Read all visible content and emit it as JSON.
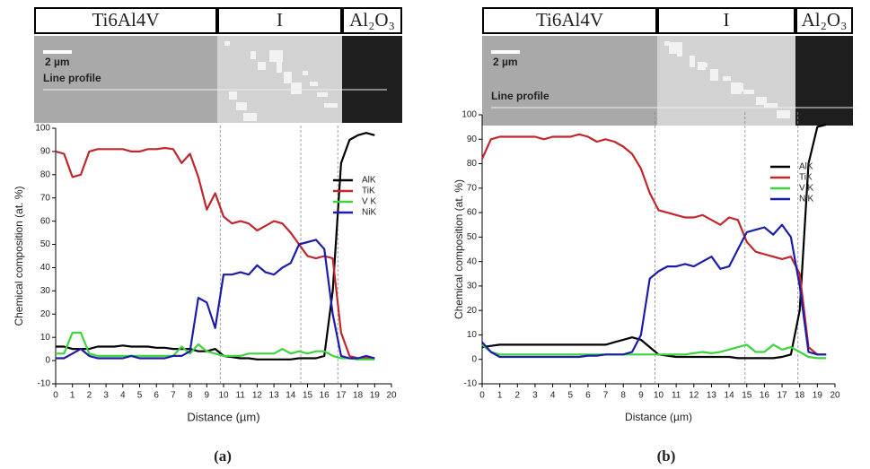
{
  "chart_data": [
    {
      "type": "line",
      "caption": "(a)",
      "panels": [
        "Ti6Al4V",
        "I",
        "Al₂O₃"
      ],
      "annotations": [
        "2 µm",
        "Line profile"
      ],
      "xlabel": "Distance (µm)",
      "ylabel": "Chemical composition (at. %)",
      "x": [
        0,
        0.5,
        1,
        1.5,
        2,
        2.5,
        3,
        3.5,
        4,
        4.5,
        5,
        5.5,
        6,
        6.5,
        7,
        7.5,
        8,
        8.5,
        9,
        9.5,
        10,
        10.5,
        11,
        11.5,
        12,
        12.5,
        13,
        13.5,
        14,
        14.5,
        15,
        15.5,
        16,
        16.5,
        17,
        17.5,
        18,
        18.5,
        19
      ],
      "series": [
        {
          "name": "AlK",
          "color": "#000000",
          "values": [
            6,
            6,
            5,
            5,
            5,
            6,
            6,
            6,
            6.5,
            6,
            6,
            6,
            5.5,
            5.5,
            5,
            5,
            5,
            4,
            4,
            5,
            2,
            1.5,
            1,
            1,
            0.5,
            0.5,
            0.5,
            0.5,
            0.5,
            1,
            1,
            1,
            2,
            30,
            85,
            95,
            97,
            98,
            97
          ]
        },
        {
          "name": "TiK",
          "color": "#c0262b",
          "values": [
            90,
            89,
            79,
            80,
            90,
            91,
            91,
            91,
            91,
            90,
            90,
            91,
            91,
            91.5,
            91,
            85,
            89,
            79,
            65,
            72,
            62,
            59,
            60,
            59,
            56,
            58,
            60,
            59,
            55,
            50,
            45,
            44,
            45,
            44,
            12,
            2,
            1,
            1,
            1
          ]
        },
        {
          "name": "V K",
          "color": "#3dd43d",
          "values": [
            3,
            3,
            12,
            12,
            3,
            2,
            2,
            2,
            2,
            2,
            2,
            2,
            2,
            2,
            2,
            6,
            3,
            7,
            4,
            3,
            2,
            2,
            2,
            3,
            3,
            3,
            3,
            5,
            3,
            4,
            3,
            4,
            4,
            2,
            1,
            1,
            0.5,
            0.5,
            0.5
          ]
        },
        {
          "name": "NiK",
          "color": "#1c1ca8",
          "values": [
            1,
            1,
            3,
            5,
            2,
            1,
            1,
            1,
            1,
            2,
            1,
            1,
            1,
            1,
            2,
            2,
            4,
            27,
            25,
            14,
            37,
            37,
            38,
            37,
            41,
            38,
            37,
            40,
            42,
            50,
            51,
            52,
            48,
            20,
            2,
            1,
            1,
            2,
            1
          ]
        }
      ],
      "vlines": [
        9.8,
        14.6,
        16.8
      ],
      "xlim": [
        0,
        20
      ],
      "xticks": [
        0,
        1,
        2,
        3,
        4,
        5,
        6,
        7,
        8,
        9,
        10,
        11,
        12,
        13,
        14,
        15,
        16,
        17,
        18,
        19,
        20
      ],
      "ylim": [
        -10,
        100
      ],
      "yticks": [
        -10,
        0,
        10,
        20,
        30,
        40,
        50,
        60,
        70,
        80,
        90,
        100
      ],
      "legend": "right"
    },
    {
      "type": "line",
      "caption": "(b)",
      "panels": [
        "Ti6Al4V",
        "I",
        "Al₂O₃"
      ],
      "annotations": [
        "2 µm",
        "Line profile"
      ],
      "xlabel": "Distance (µm)",
      "ylabel": "Chemical composition (at. %)",
      "x": [
        0,
        0.5,
        1,
        1.5,
        2,
        2.5,
        3,
        3.5,
        4,
        4.5,
        5,
        5.5,
        6,
        6.5,
        7,
        7.5,
        8,
        8.5,
        9,
        9.5,
        10,
        10.5,
        11,
        11.5,
        12,
        12.5,
        13,
        13.5,
        14,
        14.5,
        15,
        15.5,
        16,
        16.5,
        17,
        17.5,
        18,
        18.5,
        19,
        19.5
      ],
      "series": [
        {
          "name": "AlK",
          "color": "#000000",
          "values": [
            5,
            5.5,
            6,
            6,
            6,
            6,
            6,
            6,
            6,
            6,
            6,
            6,
            6,
            6,
            6,
            7,
            8,
            9,
            8,
            5,
            2,
            1.5,
            1,
            1,
            1,
            1,
            1,
            1,
            1,
            0.5,
            0.5,
            0.5,
            0.5,
            0.5,
            1,
            2,
            20,
            80,
            95,
            96
          ]
        },
        {
          "name": "TiK",
          "color": "#c0262b",
          "values": [
            82,
            90,
            91,
            91,
            91,
            91,
            91,
            90,
            91,
            91,
            91,
            92,
            91,
            89,
            90,
            89,
            87,
            84,
            78,
            68,
            61,
            60,
            59,
            58,
            58,
            59,
            57,
            55,
            58,
            57,
            48,
            44,
            43,
            42,
            41,
            42,
            35,
            5,
            2,
            2
          ]
        },
        {
          "name": "V K",
          "color": "#3dd43d",
          "values": [
            6,
            3,
            2,
            2,
            2,
            2,
            2,
            2,
            2,
            2,
            2,
            2,
            2,
            2,
            2,
            2,
            2,
            2,
            2,
            2,
            2,
            2,
            2,
            2,
            2.5,
            3,
            2.5,
            3,
            4,
            5,
            6,
            3,
            3,
            6,
            4,
            5,
            3,
            1,
            0.5,
            0.5
          ]
        },
        {
          "name": "NiK",
          "color": "#1c1ca8",
          "values": [
            7,
            3,
            1,
            1,
            1,
            1,
            1,
            1,
            1,
            1,
            1,
            1,
            1.5,
            1.5,
            2,
            2,
            2,
            3,
            10,
            33,
            36,
            38,
            38,
            39,
            38,
            40,
            42,
            37,
            38,
            45,
            52,
            53,
            54,
            51,
            55,
            50,
            30,
            3,
            2,
            2
          ]
        }
      ],
      "vlines": [
        9.8,
        14.9,
        17.9
      ],
      "xlim": [
        0,
        20
      ],
      "xticks": [
        0,
        1,
        2,
        3,
        4,
        5,
        6,
        7,
        8,
        9,
        10,
        11,
        12,
        13,
        14,
        15,
        16,
        17,
        18,
        19,
        20
      ],
      "ylim": [
        -10,
        100
      ],
      "yticks": [
        -10,
        0,
        10,
        20,
        30,
        40,
        50,
        60,
        70,
        80,
        90,
        100
      ],
      "legend": "right"
    }
  ]
}
